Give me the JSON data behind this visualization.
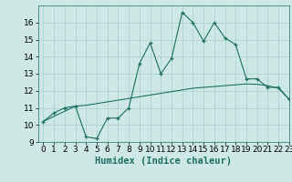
{
  "x": [
    0,
    1,
    2,
    3,
    4,
    5,
    6,
    7,
    8,
    9,
    10,
    11,
    12,
    13,
    14,
    15,
    16,
    17,
    18,
    19,
    20,
    21,
    22,
    23
  ],
  "y_jagged": [
    10.2,
    10.7,
    11.0,
    11.1,
    9.3,
    9.2,
    10.4,
    10.4,
    11.0,
    13.6,
    14.8,
    13.0,
    13.9,
    16.6,
    16.0,
    14.9,
    16.0,
    15.1,
    14.7,
    12.7,
    12.7,
    12.2,
    12.2,
    11.5
  ],
  "y_smooth": [
    10.2,
    10.5,
    10.8,
    11.1,
    11.15,
    11.25,
    11.35,
    11.45,
    11.55,
    11.65,
    11.75,
    11.85,
    11.95,
    12.05,
    12.15,
    12.2,
    12.25,
    12.3,
    12.35,
    12.4,
    12.38,
    12.3,
    12.15,
    11.5
  ],
  "bg_color": "#cde8e5",
  "grid_color": "#aacfcc",
  "line_color": "#1e6e64",
  "marker": "+",
  "xlabel": "Humidex (Indice chaleur)",
  "ylim": [
    9,
    17
  ],
  "xlim": [
    -0.5,
    23
  ],
  "yticks": [
    9,
    10,
    11,
    12,
    13,
    14,
    15,
    16
  ],
  "xticks": [
    0,
    1,
    2,
    3,
    4,
    5,
    6,
    7,
    8,
    9,
    10,
    11,
    12,
    13,
    14,
    15,
    16,
    17,
    18,
    19,
    20,
    21,
    22,
    23
  ],
  "xlabel_fontsize": 7.5,
  "tick_fontsize": 6.5
}
